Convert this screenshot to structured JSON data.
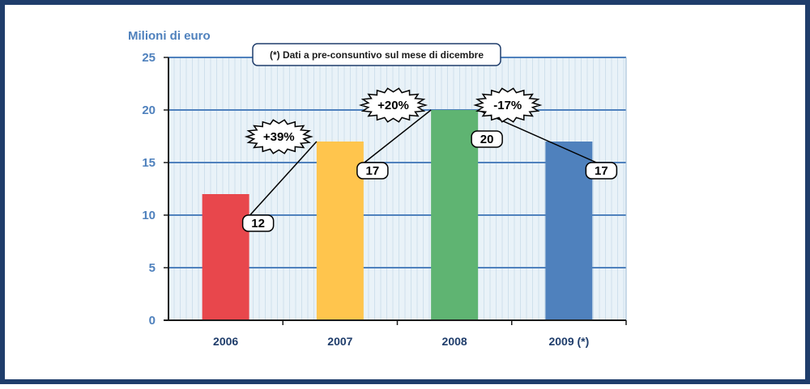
{
  "chart_data": {
    "type": "bar",
    "ylabel": "Milioni di euro",
    "categories": [
      "2006",
      "2007",
      "2008",
      "2009 (*)"
    ],
    "values": [
      12,
      17,
      20,
      17
    ],
    "data_labels": [
      "12",
      "17",
      "20",
      "17"
    ],
    "ylim": [
      0,
      25
    ],
    "yticks": [
      0,
      5,
      10,
      15,
      20,
      25
    ],
    "grid": true,
    "growth_labels": [
      "+39%",
      "+20%",
      "-17%"
    ],
    "note": "(*) Dati a pre-consuntivo sul mese di dicembre",
    "colors": {
      "bars": [
        "#e8474c",
        "#ffc54d",
        "#5fb472",
        "#4f81bd"
      ],
      "plot_background": "#e9f2f8",
      "gridline": "#4f81bd",
      "axis_text": "#4f81bd",
      "category_text": "#1f3d6b",
      "frame": "#1f3d6b"
    }
  }
}
